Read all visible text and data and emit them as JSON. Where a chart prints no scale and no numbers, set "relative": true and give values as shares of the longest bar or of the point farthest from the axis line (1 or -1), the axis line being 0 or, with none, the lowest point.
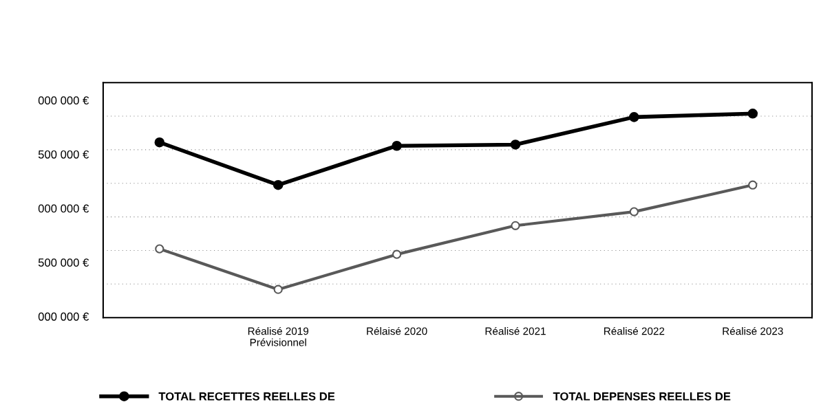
{
  "chart_data": {
    "type": "line",
    "relative": true,
    "categories": [
      null,
      "Réalisé 2019\nPrévisionnel",
      "Rélaisé 2020",
      "Réalisé 2021",
      "Réalisé 2022",
      "Réalisé 2023"
    ],
    "series": [
      {
        "name": "TOTAL RECETTES REELLES DE",
        "color": "#000000",
        "marker": "circle",
        "values": [
          0.859,
          0.65,
          0.842,
          0.848,
          0.983,
          1
        ]
      },
      {
        "name": "TOTAL DEPENSES REELLES DE",
        "color": "#595959",
        "marker": "circle",
        "values": [
          0.337,
          0.138,
          0.31,
          0.451,
          0.519,
          0.65
        ]
      }
    ],
    "annotations": [
      "000 000 €",
      "500 000 €",
      "000 000 €",
      "500 000 €",
      "000 000 €"
    ],
    "grid": "y",
    "legend": "bottom",
    "line_style": "solid"
  }
}
